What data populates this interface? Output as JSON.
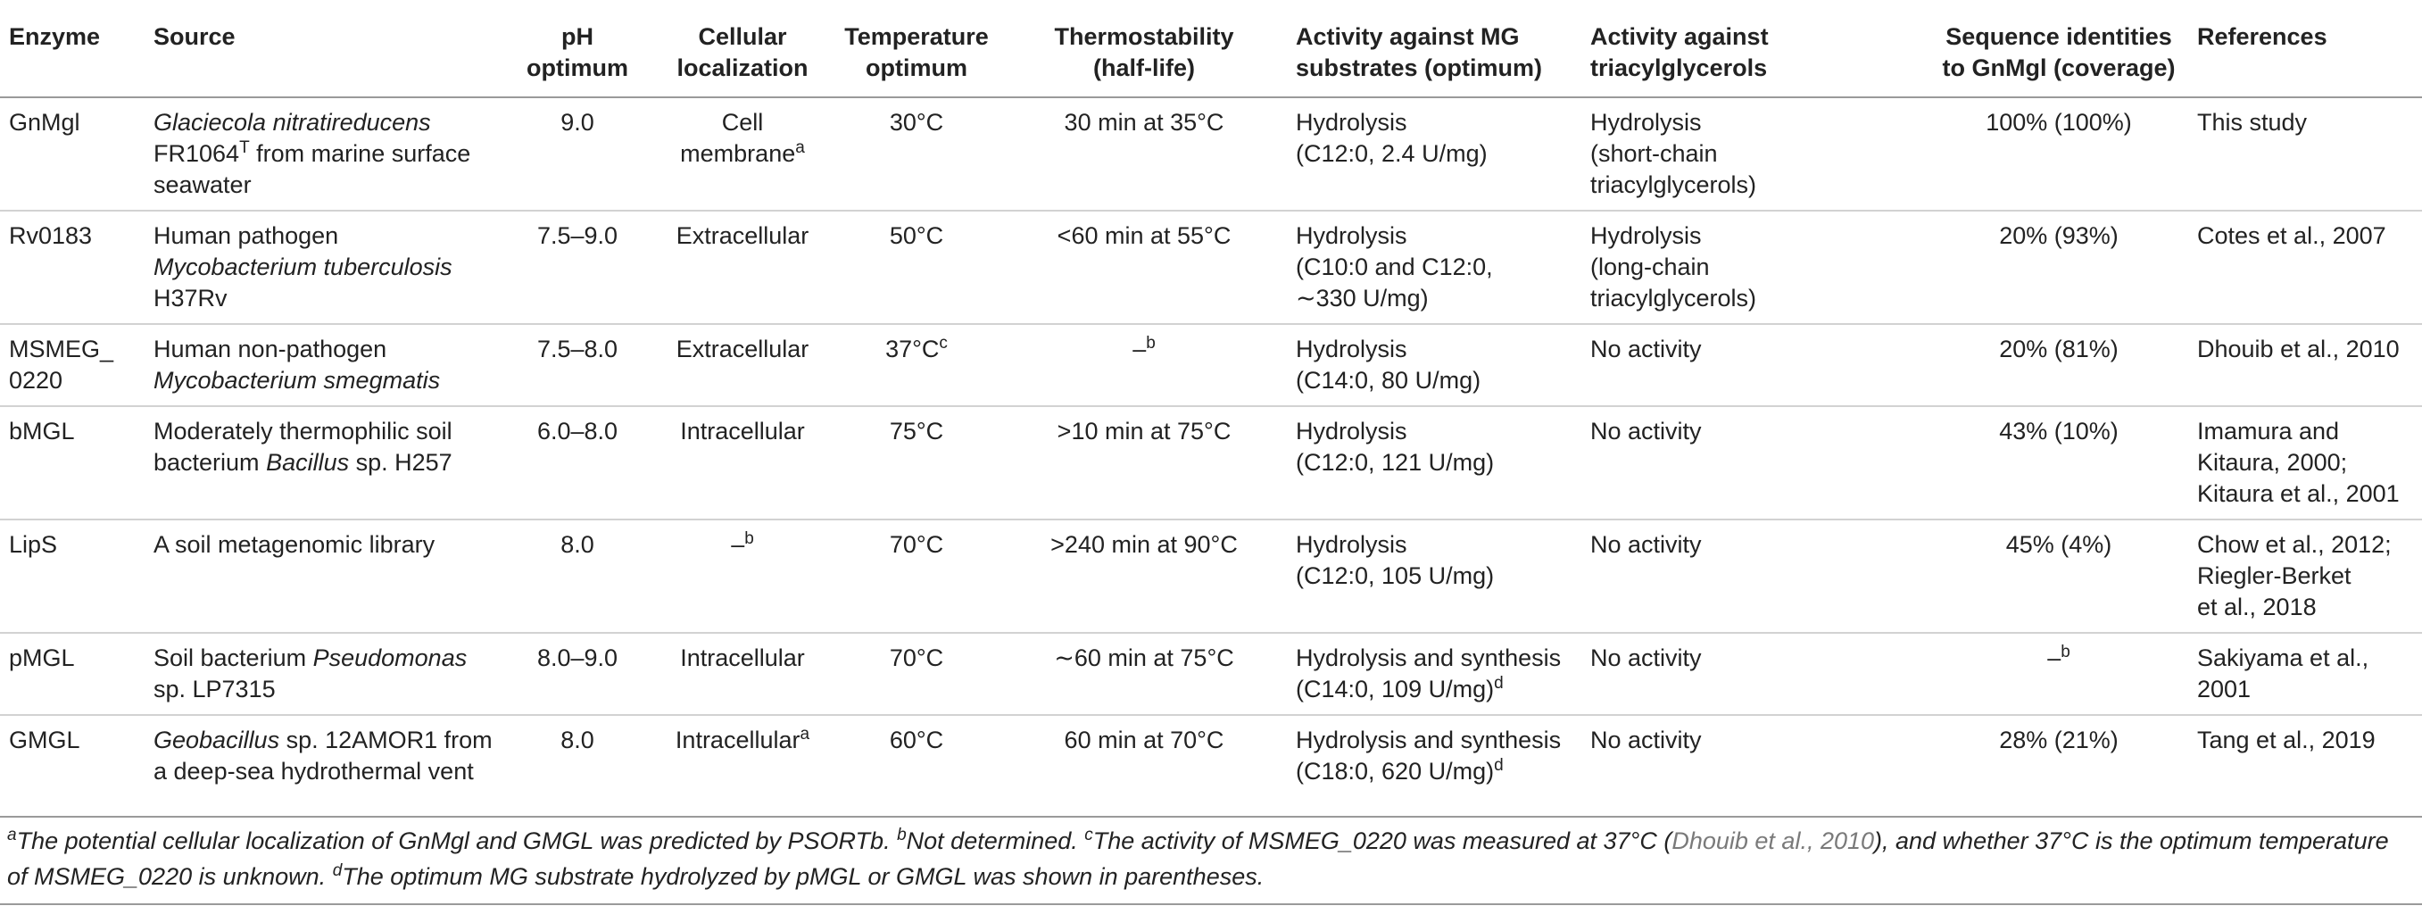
{
  "headers": [
    "Enzyme",
    "Source",
    "pH optimum",
    "Cellular\nlocalization",
    "Temperature\noptimum",
    "Thermostability\n(half-life)",
    "Activity against MG\nsubstrates (optimum)",
    "Activity against\ntriacylglycerols",
    "Sequence identities\nto GnMgl (coverage)",
    "References"
  ],
  "rows": [
    {
      "enzyme": "GnMgl",
      "source_italic": "Glaciecola nitratireducens",
      "source_rest": "FR1064",
      "source_sup": "T",
      "source_tail": " from marine surface seawater",
      "ph": "9.0",
      "loc": "Cell membrane",
      "loc_sup": "a",
      "temp": "30°C",
      "temp_sup": "",
      "thermo": "30 min at 35°C",
      "thermo_sup": "",
      "mg": "Hydrolysis\n(C12:0, 2.4 U/mg)",
      "mg_sup": "",
      "tag": "Hydrolysis\n(short-chain\ntriacylglycerols)",
      "seq": "100% (100%)",
      "seq_sup": "",
      "ref": "This study",
      "ref_grey": false
    },
    {
      "enzyme": "Rv0183",
      "source_pre": "Human pathogen",
      "source_italic": "Mycobacterium tuberculosis",
      "source_rest": "H37Rv",
      "ph": "7.5–9.0",
      "loc": "Extracellular",
      "loc_sup": "",
      "temp": "50°C",
      "temp_sup": "",
      "thermo": "<60 min at 55°C",
      "thermo_sup": "",
      "mg": "Hydrolysis\n(C10:0 and C12:0,\n∼330 U/mg)",
      "mg_sup": "",
      "tag": "Hydrolysis\n(long-chain\ntriacylglycerols)",
      "seq": "20% (93%)",
      "seq_sup": "",
      "ref": "Cotes et al., 2007",
      "ref_grey": true
    },
    {
      "enzyme": "MSMEG_\n0220",
      "source_pre": "Human non-pathogen",
      "source_italic": "Mycobacterium smegmatis",
      "source_rest": "",
      "ph": "7.5–8.0",
      "loc": "Extracellular",
      "loc_sup": "",
      "temp": "37°C",
      "temp_sup": "c",
      "thermo": "–",
      "thermo_sup": "b",
      "mg": "Hydrolysis\n(C14:0, 80 U/mg)",
      "mg_sup": "",
      "tag": "No activity",
      "seq": "20% (81%)",
      "seq_sup": "",
      "ref": "Dhouib et al., 2010",
      "ref_grey": true
    },
    {
      "enzyme": "bMGL",
      "source_pre": "Moderately thermophilic soil bacterium",
      "source_italic": "Bacillus",
      "source_rest": " sp. H257",
      "ph": "6.0–8.0",
      "loc": "Intracellular",
      "loc_sup": "",
      "temp": "75°C",
      "temp_sup": "",
      "thermo": ">10 min at 75°C",
      "thermo_sup": "",
      "mg": "Hydrolysis\n(C12:0, 121 U/mg)",
      "mg_sup": "",
      "tag": "No activity",
      "seq": "43% (10%)",
      "seq_sup": "",
      "ref": "Imamura and\nKitaura, 2000;\nKitaura et al., 2001",
      "ref_grey": true
    },
    {
      "enzyme": "LipS",
      "source_pre": "A soil metagenomic library",
      "source_italic": "",
      "source_rest": "",
      "ph": "8.0",
      "loc": "–",
      "loc_sup": "b",
      "temp": "70°C",
      "temp_sup": "",
      "thermo": ">240 min at 90°C",
      "thermo_sup": "",
      "mg": "Hydrolysis\n(C12:0, 105 U/mg)",
      "mg_sup": "",
      "tag": "No activity",
      "seq": "45% (4%)",
      "seq_sup": "",
      "ref": "Chow et al., 2012;\nRiegler-Berket\net al., 2018",
      "ref_grey": true
    },
    {
      "enzyme": "pMGL",
      "source_pre": "Soil bacterium",
      "source_italic": "Pseudomonas",
      "source_rest": "sp. LP7315",
      "ph": "8.0–9.0",
      "loc": "Intracellular",
      "loc_sup": "",
      "temp": "70°C",
      "temp_sup": "",
      "thermo": "∼60 min at 75°C",
      "thermo_sup": "",
      "mg": "Hydrolysis and synthesis\n(C14:0, 109 U/mg)",
      "mg_sup": "d",
      "tag": "No activity",
      "seq": "–",
      "seq_sup": "b",
      "ref": "Sakiyama et al.,\n2001",
      "ref_grey": true
    },
    {
      "enzyme": "GMGL",
      "source_pre": "",
      "source_italic": "Geobacillus",
      "source_rest": " sp. 12AMOR1 from a deep-sea hydrothermal vent",
      "ph": "8.0",
      "loc": "Intracellular",
      "loc_sup": "a",
      "temp": "60°C",
      "temp_sup": "",
      "thermo": "60 min at 70°C",
      "thermo_sup": "",
      "mg": "Hydrolysis and synthesis\n(C18:0, 620 U/mg)",
      "mg_sup": "d",
      "tag": "No activity",
      "seq": "28% (21%)",
      "seq_sup": "",
      "ref": "Tang et al., 2019",
      "ref_grey": true
    }
  ],
  "footnote": {
    "a_mark": "a",
    "a_text": "The potential cellular localization of GnMgl and GMGL was predicted by PSORTb. ",
    "b_mark": "b",
    "b_text": "Not determined. ",
    "c_mark": "c",
    "c_text_1": "The activity of MSMEG_0220 was measured at 37°C (",
    "c_ref": "Dhouib et al., 2010",
    "c_text_2": "), and whether 37°C is the optimum temperature of MSMEG_0220 is unknown. ",
    "d_mark": "d",
    "d_text": "The optimum MG substrate hydrolyzed by pMGL or GMGL was shown in parentheses."
  }
}
